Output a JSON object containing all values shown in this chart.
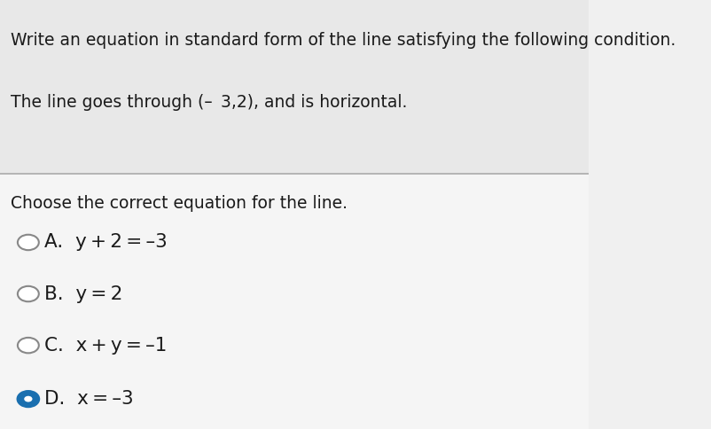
{
  "title_line1": "Write an equation in standard form of the line satisfying the following condition.",
  "title_line2": "The line goes through (– 3,2), and is horizontal.",
  "prompt": "Choose the correct equation for the line.",
  "options": [
    {
      "label": "A.",
      "text": "  y + 2 = –3",
      "selected": false
    },
    {
      "label": "B.",
      "text": "  y = 2",
      "selected": false
    },
    {
      "label": "C.",
      "text": "  x + y = –1",
      "selected": false
    },
    {
      "label": "D.",
      "text": "  x = –3",
      "selected": true
    }
  ],
  "bg_color": "#f0f0f0",
  "top_bg_color": "#e8e8e8",
  "bottom_bg_color": "#f5f5f5",
  "text_color": "#1a1a1a",
  "option_text_color": "#1a1a1a",
  "selected_circle_color": "#1a6faf",
  "unselected_circle_color": "#ffffff",
  "circle_edge_color": "#888888",
  "selected_edge_color": "#1a6faf",
  "divider_color": "#aaaaaa",
  "font_size_title": 13.5,
  "font_size_options": 15.5,
  "font_size_prompt": 13.5
}
